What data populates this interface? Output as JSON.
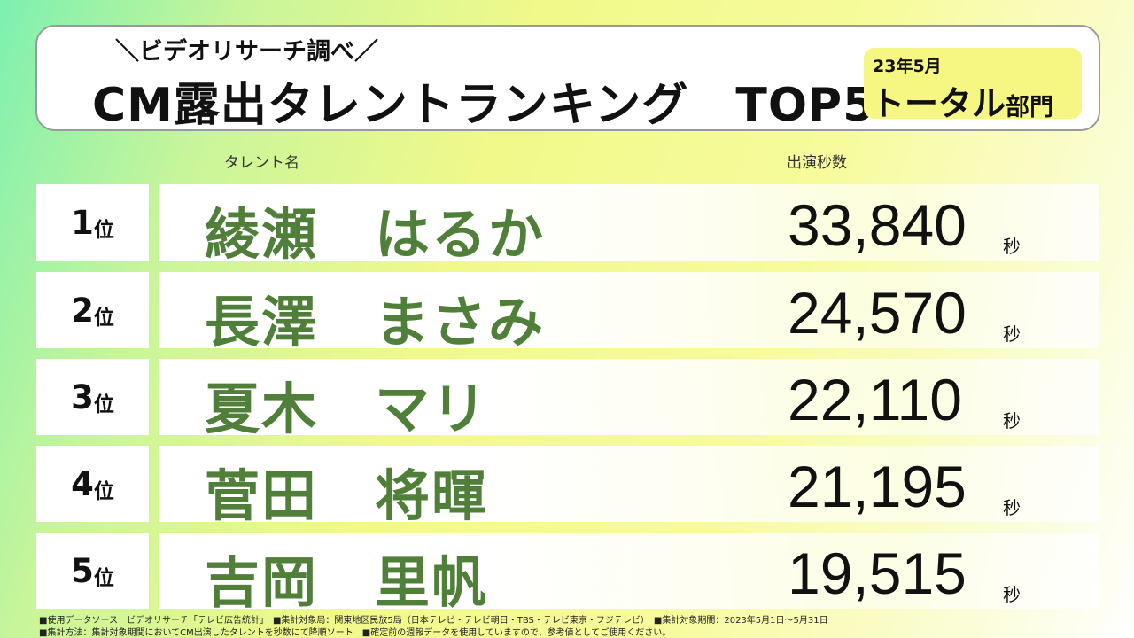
{
  "header": {
    "subtitle": "＼ビデオリサーチ調べ／",
    "title": "CM露出タレントランキング　TOP5",
    "badge_date": "23年5月",
    "badge_main": "トータル",
    "badge_suffix": "部門"
  },
  "columns": {
    "name": "タレント名",
    "seconds": "出演秒数"
  },
  "rank_suffix": "位",
  "seconds_unit": "秒",
  "rows": [
    {
      "rank": "1",
      "name": "綾瀬　はるか",
      "seconds": "33,840"
    },
    {
      "rank": "2",
      "name": "長澤　まさみ",
      "seconds": "24,570"
    },
    {
      "rank": "3",
      "name": "夏木　マリ",
      "seconds": "22,110"
    },
    {
      "rank": "4",
      "name": "菅田　将暉",
      "seconds": "21,195"
    },
    {
      "rank": "5",
      "name": "吉岡　里帆",
      "seconds": "19,515"
    }
  ],
  "footnotes": [
    "■使用データソース　ビデオリサーチ「テレビ広告統計」　■集計対象局：関東地区民放5局（日本テレビ・テレビ朝日・TBS・テレビ東京・フジテレビ）　■集計対象期間：2023年5月1日～5月31日",
    "■集計方法：集計対象期間においてCM出演したタレントを秒数にて降順ソート　■確定前の週報データを使用していますので、参考値としてご使用ください。"
  ]
}
